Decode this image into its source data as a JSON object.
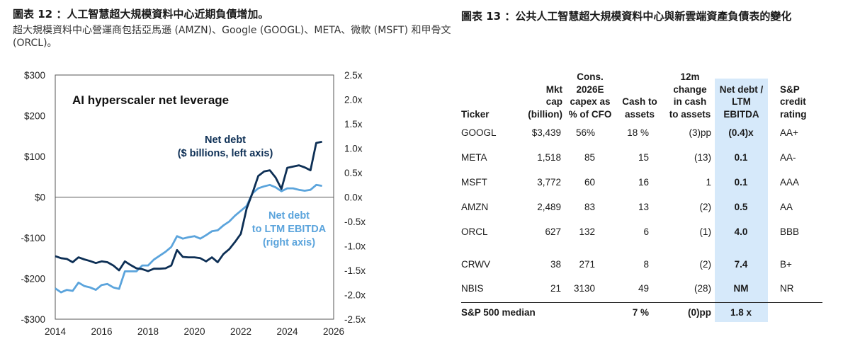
{
  "left": {
    "title": "圖表 12 ：人工智慧超大規模資料中心近期負債增加。",
    "subtitle": "超大規模資料中心營運商包括亞馬遜 (AMZN)、Google (GOOGL)、META、微軟 (MSFT) 和甲骨文 (ORCL)。"
  },
  "right": {
    "title": "圖表 13 ：公共人工智慧超大規模資料中心與新雲端資產負債表的變化"
  },
  "colors": {
    "net_debt": "#0d2f55",
    "leverage": "#5ba4dc",
    "highlight": "#d6e9fa"
  },
  "chart_data": {
    "type": "line",
    "title": "AI hyperscaler net leverage",
    "x_ticks": [
      "2014",
      "2016",
      "2018",
      "2020",
      "2022",
      "2024",
      "2026"
    ],
    "xlim": [
      2014,
      2026
    ],
    "left_axis": {
      "ticks": [
        "$300",
        "$200",
        "$100",
        "$0",
        "-$100",
        "-$200",
        "-$300"
      ],
      "ylim": [
        -300,
        300
      ]
    },
    "right_axis": {
      "ticks": [
        "2.5x",
        "2.0x",
        "1.5x",
        "1.0x",
        "0.5x",
        "0.0x",
        "-0.5x",
        "-1.0x",
        "-1.5x",
        "-2.0x",
        "-2.5x"
      ],
      "ylim": [
        -2.5,
        2.5
      ]
    },
    "series": [
      {
        "name": "Net debt",
        "annotation_lines": [
          "Net debt",
          "($ billions, left axis)"
        ],
        "axis": "left",
        "x": [
          2014.0,
          2014.25,
          2014.5,
          2014.75,
          2015.0,
          2015.25,
          2015.5,
          2015.75,
          2016.0,
          2016.25,
          2016.5,
          2016.75,
          2017.0,
          2017.25,
          2017.5,
          2017.75,
          2018.0,
          2018.25,
          2018.5,
          2018.75,
          2019.0,
          2019.25,
          2019.5,
          2019.75,
          2020.0,
          2020.25,
          2020.5,
          2020.75,
          2021.0,
          2021.25,
          2021.5,
          2021.75,
          2022.0,
          2022.25,
          2022.5,
          2022.75,
          2023.0,
          2023.25,
          2023.5,
          2023.75,
          2024.0,
          2024.25,
          2024.5,
          2024.75,
          2025.0,
          2025.25,
          2025.5
        ],
        "values": [
          -145,
          -150,
          -152,
          -160,
          -148,
          -153,
          -157,
          -162,
          -158,
          -160,
          -168,
          -180,
          -158,
          -167,
          -175,
          -177,
          -182,
          -176,
          -176,
          -175,
          -168,
          -130,
          -147,
          -148,
          -148,
          -150,
          -158,
          -148,
          -160,
          -140,
          -128,
          -110,
          -90,
          -28,
          10,
          52,
          63,
          66,
          48,
          20,
          72,
          75,
          78,
          73,
          66,
          133,
          136
        ]
      },
      {
        "name": "Net debt to LTM EBITDA",
        "annotation_lines": [
          "Net debt",
          "to LTM EBITDA",
          "(right axis)"
        ],
        "axis": "right",
        "x": [
          2014.0,
          2014.25,
          2014.5,
          2014.75,
          2015.0,
          2015.25,
          2015.5,
          2015.75,
          2016.0,
          2016.25,
          2016.5,
          2016.75,
          2017.0,
          2017.25,
          2017.5,
          2017.75,
          2018.0,
          2018.25,
          2018.5,
          2018.75,
          2019.0,
          2019.25,
          2019.5,
          2019.75,
          2020.0,
          2020.25,
          2020.5,
          2020.75,
          2021.0,
          2021.25,
          2021.5,
          2021.75,
          2022.0,
          2022.25,
          2022.5,
          2022.75,
          2023.0,
          2023.25,
          2023.5,
          2023.75,
          2024.0,
          2024.25,
          2024.5,
          2024.75,
          2025.0,
          2025.25,
          2025.5
        ],
        "values": [
          -1.87,
          -1.95,
          -1.9,
          -1.92,
          -1.75,
          -1.82,
          -1.85,
          -1.9,
          -1.8,
          -1.78,
          -1.85,
          -1.88,
          -1.52,
          -1.52,
          -1.52,
          -1.4,
          -1.4,
          -1.28,
          -1.2,
          -1.12,
          -1.02,
          -0.8,
          -0.85,
          -0.82,
          -0.8,
          -0.85,
          -0.78,
          -0.7,
          -0.68,
          -0.58,
          -0.5,
          -0.38,
          -0.28,
          -0.18,
          0.08,
          0.18,
          0.22,
          0.25,
          0.2,
          0.12,
          0.18,
          0.18,
          0.15,
          0.13,
          0.15,
          0.25,
          0.23
        ]
      }
    ]
  },
  "table": {
    "headers": [
      [
        "Ticker"
      ],
      [
        "Mkt",
        "cap",
        "(billion)"
      ],
      [
        "Cons.",
        "2026E",
        "capex as",
        "% of CFO"
      ],
      [
        "Cash to",
        "assets"
      ],
      [
        "12m",
        "change",
        "in cash",
        "to assets"
      ],
      [
        "Net debt /",
        "LTM",
        "EBITDA"
      ],
      [
        "S&P",
        "credit",
        "rating"
      ]
    ],
    "rows": [
      [
        "GOOGL",
        "$3,439",
        "56%",
        "18 %",
        "(3)pp",
        "(0.4)x",
        "AA+"
      ],
      [
        "META",
        "1,518",
        "85",
        "15",
        "(13)",
        "0.1",
        "AA-"
      ],
      [
        "MSFT",
        "3,772",
        "60",
        "16",
        "1",
        "0.1",
        "AAA"
      ],
      [
        "AMZN",
        "2,489",
        "83",
        "13",
        "(2)",
        "0.5",
        "AA"
      ],
      [
        "ORCL",
        "627",
        "132",
        "6",
        "(1)",
        "4.0",
        "BBB"
      ],
      [
        "CRWV",
        "38",
        "271",
        "8",
        "(2)",
        "7.4",
        "B+"
      ],
      [
        "NBIS",
        "21",
        "3130",
        "49",
        "(28)",
        "NM",
        "NR"
      ]
    ],
    "median": {
      "label": "S&P 500 median",
      "cash": "7 %",
      "change": "(0)pp",
      "leverage": "1.8 x"
    }
  }
}
